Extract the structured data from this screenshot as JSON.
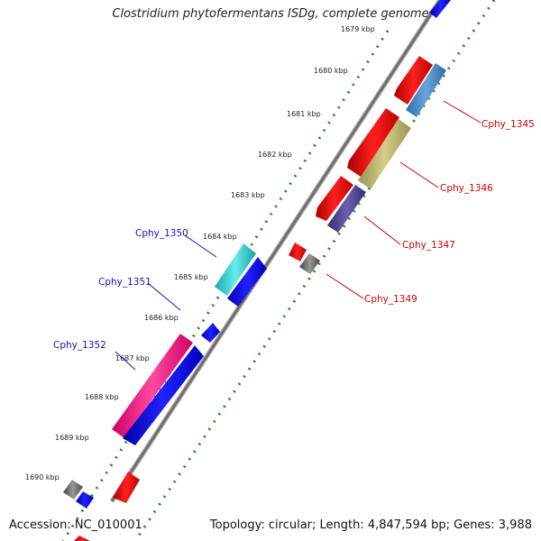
{
  "title": "Clostridium phytofermentans ISDg, complete genome",
  "footer": {
    "accession": "Accession: NC_010001",
    "summary": "Topology: circular; Length: 4,847,594 bp; Genes: 3,988"
  },
  "ticks": [
    "1679 kbp",
    "1680 kbp",
    "1681 kbp",
    "1682 kbp",
    "1683 kbp",
    "1684 kbp",
    "1685 kbp",
    "1686 kbp",
    "1687 kbp",
    "1688 kbp",
    "1689 kbp",
    "1690 kbp"
  ],
  "labels": {
    "cphy_1345": "Cphy_1345",
    "cphy_1346": "Cphy_1346",
    "cphy_1347": "Cphy_1347",
    "cphy_1349": "Cphy_1349",
    "cphy_1350": "Cphy_1350",
    "cphy_1351": "Cphy_1351",
    "cphy_1352": "Cphy_1352"
  },
  "colors": {
    "backbone": "#777777",
    "tick_dots": "#1a8a1a",
    "red_gene": "#ee0000",
    "blue_gene": "#0000ee",
    "cyan_gene": "#22c8c8",
    "pink_gene": "#ff2a8a",
    "steel_gene": "#4a86c0",
    "khaki_gene": "#b8b26a",
    "purple_gene": "#4a3f8e",
    "gray_gene": "#666666",
    "forward_label": "#cc0000",
    "reverse_label": "#1111bb"
  }
}
